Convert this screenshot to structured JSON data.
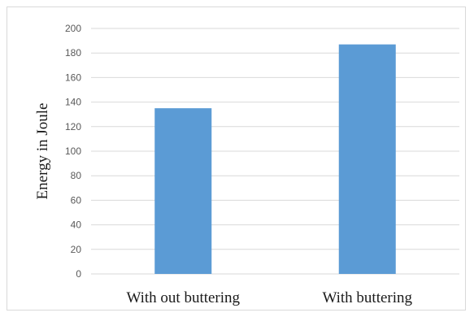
{
  "chart_data": {
    "type": "bar",
    "title": "",
    "xlabel": "",
    "ylabel": "Energy  in Joule",
    "categories": [
      "With out buttering",
      "With buttering"
    ],
    "values": [
      135,
      187
    ],
    "ylim": [
      0,
      200
    ],
    "ytick_step": 20,
    "yticks": [
      "0",
      "20",
      "40",
      "60",
      "80",
      "100",
      "120",
      "140",
      "160",
      "180",
      "200"
    ],
    "grid": true,
    "legend": "none",
    "bar_color": "#5b9bd5",
    "grid_color": "#d9d9d9"
  }
}
